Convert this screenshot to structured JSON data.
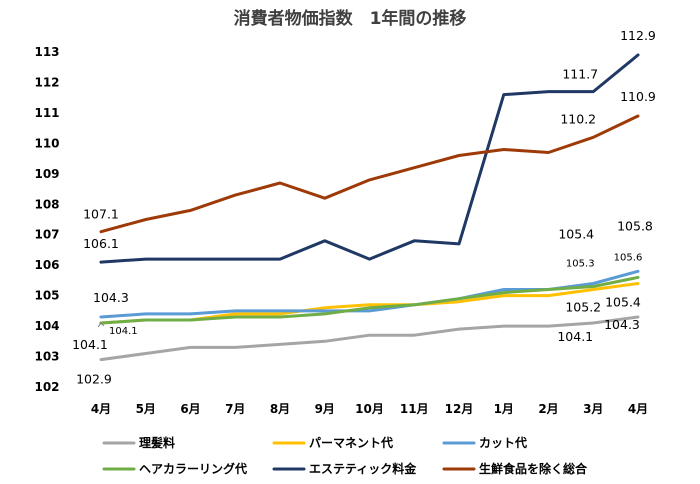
{
  "chart_data": {
    "type": "line",
    "title": "消費者物価指数　1年間の推移",
    "xlabel": "",
    "ylabel": "",
    "categories": [
      "4月",
      "5月",
      "6月",
      "7月",
      "8月",
      "9月",
      "10月",
      "11月",
      "12月",
      "1月",
      "2月",
      "3月",
      "4月"
    ],
    "ylim": [
      102,
      113
    ],
    "yticks": [
      "102",
      "103",
      "104",
      "105",
      "106",
      "107",
      "108",
      "109",
      "110",
      "111",
      "112",
      "113"
    ],
    "grid": false,
    "legend": "bottom",
    "series": [
      {
        "name": "理髪料",
        "color": "#a5a5a5",
        "values": [
          102.9,
          103.1,
          103.3,
          103.3,
          103.4,
          103.5,
          103.7,
          103.7,
          103.9,
          104.0,
          104.0,
          104.1,
          104.3
        ]
      },
      {
        "name": "パーマネント代",
        "color": "#ffc000",
        "values": [
          104.1,
          104.2,
          104.2,
          104.4,
          104.4,
          104.6,
          104.7,
          104.7,
          104.8,
          105.0,
          105.0,
          105.2,
          105.4
        ]
      },
      {
        "name": "カット代",
        "color": "#5b9bd5",
        "values": [
          104.3,
          104.4,
          104.4,
          104.5,
          104.5,
          104.5,
          104.5,
          104.7,
          104.9,
          105.2,
          105.2,
          105.4,
          105.8
        ]
      },
      {
        "name": "ヘアカラーリング代",
        "color": "#70ad47",
        "values": [
          104.1,
          104.2,
          104.2,
          104.3,
          104.3,
          104.4,
          104.6,
          104.7,
          104.9,
          105.1,
          105.2,
          105.3,
          105.6
        ]
      },
      {
        "name": "エステティック料金",
        "color": "#1f3864",
        "values": [
          106.1,
          106.2,
          106.2,
          106.2,
          106.2,
          106.8,
          106.2,
          106.8,
          106.7,
          111.6,
          111.7,
          111.7,
          112.9
        ]
      },
      {
        "name": "生鮮食品を除く総合",
        "color": "#9e3a07",
        "values": [
          107.1,
          107.5,
          107.8,
          108.3,
          108.7,
          108.2,
          108.8,
          109.2,
          109.6,
          109.8,
          109.7,
          110.2,
          110.9
        ]
      }
    ],
    "data_labels": [
      {
        "series": 5,
        "index": 0,
        "text": "107.1"
      },
      {
        "series": 4,
        "index": 0,
        "text": "106.1"
      },
      {
        "series": 2,
        "index": 0,
        "text": "104.3"
      },
      {
        "series": 3,
        "index": 0,
        "text": "104.1"
      },
      {
        "series": 1,
        "index": 0,
        "text": "104.1"
      },
      {
        "series": 0,
        "index": 0,
        "text": "102.9"
      },
      {
        "series": 4,
        "index": 11,
        "text": "111.7"
      },
      {
        "series": 4,
        "index": 12,
        "text": "112.9"
      },
      {
        "series": 5,
        "index": 11,
        "text": "110.2"
      },
      {
        "series": 5,
        "index": 12,
        "text": "110.9"
      },
      {
        "series": 2,
        "index": 11,
        "text": "105.4"
      },
      {
        "series": 3,
        "index": 11,
        "text": "105.3"
      },
      {
        "series": 2,
        "index": 12,
        "text": "105.8"
      },
      {
        "series": 3,
        "index": 12,
        "text": "105.6"
      },
      {
        "series": 1,
        "index": 11,
        "text": "105.2"
      },
      {
        "series": 1,
        "index": 12,
        "text": "105.4"
      },
      {
        "series": 0,
        "index": 11,
        "text": "104.1"
      },
      {
        "series": 0,
        "index": 12,
        "text": "104.3"
      }
    ]
  }
}
